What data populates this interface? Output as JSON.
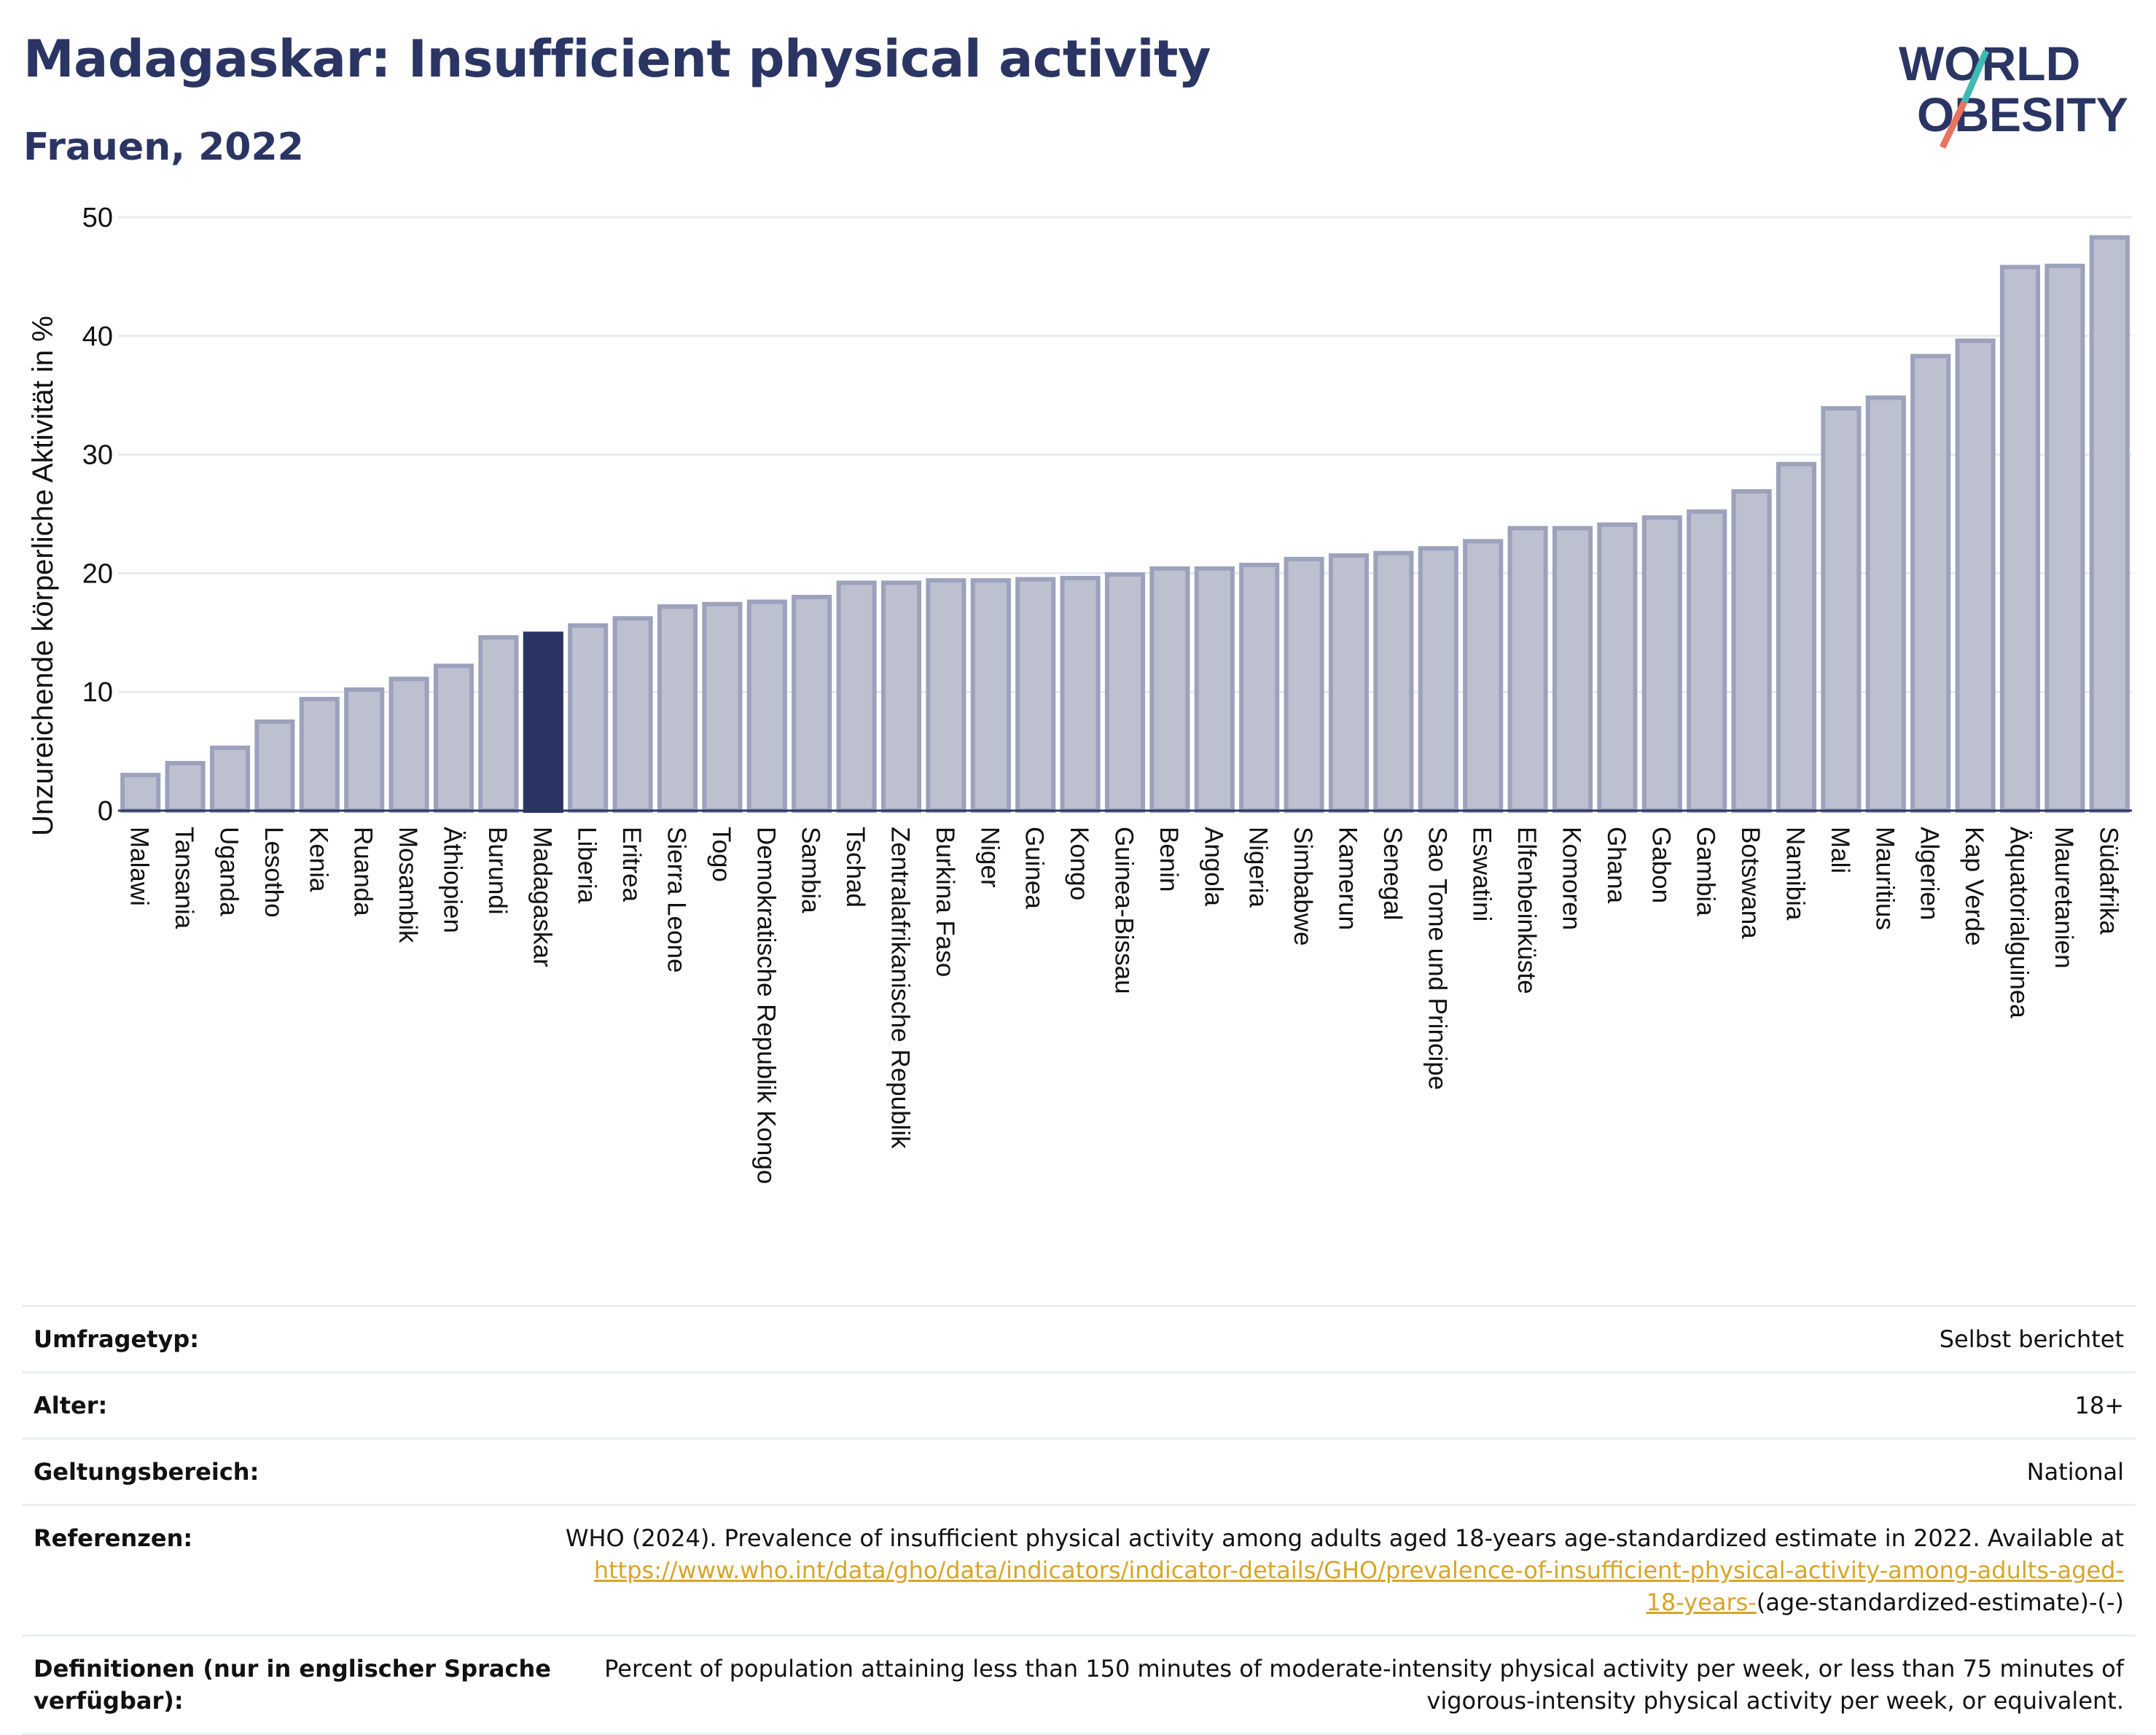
{
  "header": {
    "title": "Madagaskar: Insufficient physical activity",
    "subtitle": "Frauen, 2022"
  },
  "logo": {
    "line1": "WORLD",
    "line2": "OBESITY"
  },
  "colors": {
    "bar_default": "#bcc0cf",
    "bar_border": "#9ca2bb",
    "bar_highlight": "#2b3563",
    "title": "#2b3563",
    "link": "#d6a52a",
    "logo_teal": "#3fb9b2",
    "logo_coral": "#e8735f"
  },
  "chart_data": {
    "type": "bar",
    "ylabel": "Unzureichende körperliche Aktivität in %",
    "ylim": [
      0,
      50
    ],
    "yticks": [
      0,
      10,
      20,
      30,
      40,
      50
    ],
    "grid": true,
    "highlight": "Madagaskar",
    "categories": [
      "Malawi",
      "Tansania",
      "Uganda",
      "Lesotho",
      "Kenia",
      "Ruanda",
      "Mosambik",
      "Äthiopien",
      "Burundi",
      "Madagaskar",
      "Liberia",
      "Eritrea",
      "Sierra Leone",
      "Togo",
      "Demokratische Republik Kongo",
      "Sambia",
      "Tschad",
      "Zentralafrikanische Republik",
      "Burkina Faso",
      "Niger",
      "Guinea",
      "Kongo",
      "Guinea-Bissau",
      "Benin",
      "Angola",
      "Nigeria",
      "Simbabwe",
      "Kamerun",
      "Senegal",
      "Sao Tome und Principe",
      "Eswatini",
      "Elfenbeinküste",
      "Komoren",
      "Ghana",
      "Gabon",
      "Gambia",
      "Botswana",
      "Namibia",
      "Mali",
      "Mauritius",
      "Algerien",
      "Kap Verde",
      "Äquatorialguinea",
      "Mauretanien",
      "Südafrika"
    ],
    "values": [
      3.0,
      4.0,
      5.3,
      7.5,
      9.4,
      10.2,
      11.1,
      12.2,
      14.6,
      14.9,
      15.6,
      16.2,
      17.2,
      17.4,
      17.6,
      18.0,
      19.2,
      19.2,
      19.4,
      19.4,
      19.5,
      19.6,
      19.9,
      20.4,
      20.4,
      20.7,
      21.2,
      21.5,
      21.7,
      22.1,
      22.7,
      23.8,
      23.8,
      24.1,
      24.7,
      25.2,
      26.9,
      29.2,
      33.9,
      34.8,
      38.3,
      39.6,
      45.8,
      45.9,
      48.3
    ]
  },
  "meta": [
    {
      "label": "Umfragetyp:",
      "value": "Selbst berichtet"
    },
    {
      "label": "Alter:",
      "value": "18+"
    },
    {
      "label": "Geltungsbereich:",
      "value": "National"
    },
    {
      "label": "Referenzen:",
      "value": "WHO (2024). Prevalence of insufficient physical activity among adults aged 18-years age-standardized estimate in 2022. Available at",
      "link": "https://www.who.int/data/gho/data/indicators/indicator-details/GHO/prevalence-of-insufficient-physical-activity-among-adults-aged-18-years-",
      "suffix": "(age-standardized-estimate)-(-)"
    },
    {
      "label": "Definitionen (nur in englischer Sprache verfügbar):",
      "value": "Percent of population attaining less than 150 minutes of moderate-intensity physical activity per week, or less than 75 minutes of vigorous-intensity physical activity per week, or equivalent."
    }
  ]
}
